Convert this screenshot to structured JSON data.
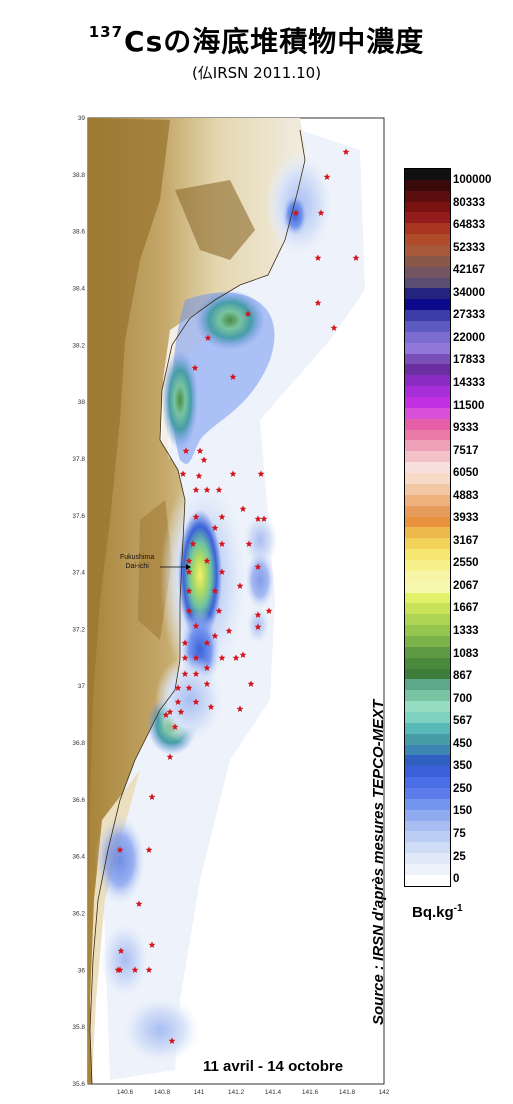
{
  "title": {
    "iso": "137",
    "main": "Csの海底堆積物中濃度"
  },
  "subtitle": "(仏IRSN 2011.10)",
  "map": {
    "lat_ticks": [
      "39",
      "38.8",
      "38.6",
      "38.4",
      "38.2",
      "38",
      "37.8",
      "37.6",
      "37.4",
      "37.2",
      "37",
      "36.8",
      "36.6",
      "36.4",
      "36.2",
      "36",
      "35.8",
      "35.6"
    ],
    "lon_ticks": [
      "140.6",
      "140.8",
      "141",
      "141.2",
      "141.4",
      "141.6",
      "141.8",
      "142"
    ],
    "marker_label_line1": "Fukushima",
    "marker_label_line2": "Dai-ichi"
  },
  "legend": {
    "labels": [
      "100000",
      "80333",
      "64833",
      "52333",
      "42167",
      "34000",
      "27333",
      "22000",
      "17833",
      "14333",
      "11500",
      "9333",
      "7517",
      "6050",
      "4883",
      "3933",
      "3167",
      "2550",
      "2067",
      "1667",
      "1333",
      "1083",
      "867",
      "700",
      "567",
      "450",
      "350",
      "250",
      "150",
      "75",
      "25",
      "0"
    ],
    "colors": [
      "#111111",
      "#3a0a0a",
      "#5c0d0d",
      "#7a1212",
      "#951c1c",
      "#a8351f",
      "#b04c2a",
      "#a8583a",
      "#8a5848",
      "#725560",
      "#5b4d72",
      "#24247e",
      "#0a0a8a",
      "#3d3ba8",
      "#5d5bc2",
      "#7b6ccf",
      "#9377d8",
      "#7a4fb8",
      "#6b2ea0",
      "#8a2cc2",
      "#a72ed8",
      "#c131e2",
      "#d84fd8",
      "#e55ea8",
      "#e87aa5",
      "#eea0b8",
      "#f2c2c8",
      "#f7e0de",
      "#f7dbc6",
      "#f2c7a3",
      "#eeb17e",
      "#e89c5c",
      "#e8913e",
      "#edb84c",
      "#f2d259",
      "#f5e770",
      "#f8f08a",
      "#f8f5a8",
      "#f6f8b0",
      "#e1f16a",
      "#c8e35a",
      "#afd455",
      "#94c54e",
      "#7bb24a",
      "#5d9a42",
      "#4a8a3c",
      "#3e7d3b",
      "#5da78a",
      "#78c3a2",
      "#95ddc3",
      "#7fd2c2",
      "#59b8b8",
      "#479ca8",
      "#3d86b4",
      "#2f5fc0",
      "#3b5fd8",
      "#4a6ee5",
      "#5b7cea",
      "#7495ee",
      "#90aaf0",
      "#a8bdf2",
      "#bccdf4",
      "#cfdcf6",
      "#e1e9f9",
      "#eef3fb",
      "#ffffff"
    ],
    "unit_main": "Bq.kg",
    "unit_sup": "-1"
  },
  "source": "Source : IRSN d'après mesures TEPCO-MEXT",
  "date_range": "11 avril - 14 octobre"
}
